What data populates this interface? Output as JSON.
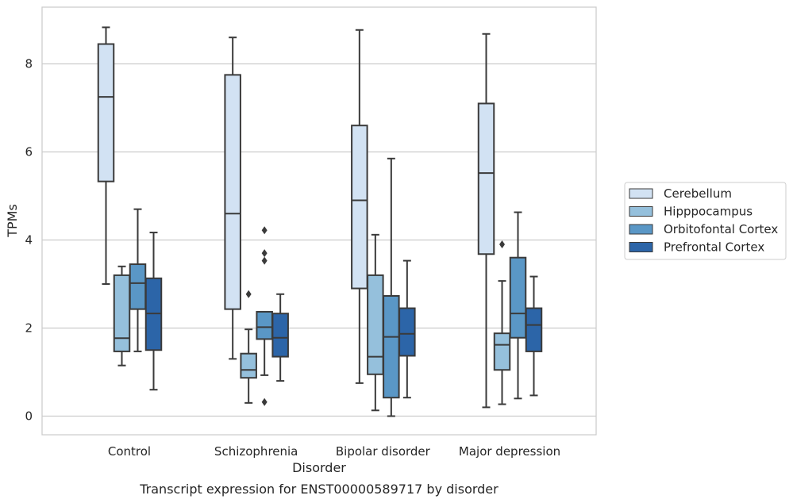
{
  "chart_data": {
    "type": "box",
    "title": "Transcript expression for ENST00000589717 by disorder",
    "xlabel": "Disorder",
    "ylabel": "TPMs",
    "ylim": [
      -0.4,
      9.3
    ],
    "yticks": [
      0,
      2,
      4,
      6,
      8
    ],
    "grid": true,
    "legend_position": "right",
    "categories": [
      "Control",
      "Schizophrenia",
      "Bipolar disorder",
      "Major depression"
    ],
    "series": [
      {
        "name": "Cerebellum",
        "color": "#d2e2f3",
        "boxes": [
          {
            "whislo": 3.0,
            "q1": 5.33,
            "med": 7.25,
            "q3": 8.45,
            "whishi": 8.83,
            "fliers": []
          },
          {
            "whislo": 1.3,
            "q1": 2.43,
            "med": 4.6,
            "q3": 7.75,
            "whishi": 8.6,
            "fliers": []
          },
          {
            "whislo": 0.75,
            "q1": 2.9,
            "med": 4.9,
            "q3": 6.6,
            "whishi": 8.77,
            "fliers": []
          },
          {
            "whislo": 0.2,
            "q1": 3.68,
            "med": 5.52,
            "q3": 7.1,
            "whishi": 8.68,
            "fliers": []
          }
        ]
      },
      {
        "name": "Hipppocampus",
        "color": "#95c0dc",
        "boxes": [
          {
            "whislo": 1.15,
            "q1": 1.47,
            "med": 1.77,
            "q3": 3.2,
            "whishi": 3.4,
            "fliers": []
          },
          {
            "whislo": 0.3,
            "q1": 0.87,
            "med": 1.05,
            "q3": 1.42,
            "whishi": 1.97,
            "fliers": [
              2.77
            ]
          },
          {
            "whislo": 0.13,
            "q1": 0.95,
            "med": 1.35,
            "q3": 3.2,
            "whishi": 4.12,
            "fliers": []
          },
          {
            "whislo": 0.27,
            "q1": 1.05,
            "med": 1.62,
            "q3": 1.88,
            "whishi": 3.07,
            "fliers": [
              3.9
            ]
          }
        ]
      },
      {
        "name": "Orbitofontal Cortex",
        "color": "#5a97c6",
        "boxes": [
          {
            "whislo": 1.47,
            "q1": 2.43,
            "med": 3.02,
            "q3": 3.45,
            "whishi": 4.7,
            "fliers": []
          },
          {
            "whislo": 0.93,
            "q1": 1.75,
            "med": 2.02,
            "q3": 2.37,
            "whishi": 2.37,
            "fliers": [
              0.32,
              3.53,
              3.7,
              4.22
            ]
          },
          {
            "whislo": 0.0,
            "q1": 0.42,
            "med": 1.8,
            "q3": 2.73,
            "whishi": 5.85,
            "fliers": []
          },
          {
            "whislo": 0.4,
            "q1": 1.78,
            "med": 2.33,
            "q3": 3.6,
            "whishi": 4.63,
            "fliers": []
          }
        ]
      },
      {
        "name": "Prefrontal Cortex",
        "color": "#2c65a8",
        "boxes": [
          {
            "whislo": 0.6,
            "q1": 1.5,
            "med": 2.33,
            "q3": 3.13,
            "whishi": 4.17,
            "fliers": []
          },
          {
            "whislo": 0.8,
            "q1": 1.35,
            "med": 1.78,
            "q3": 2.33,
            "whishi": 2.77,
            "fliers": []
          },
          {
            "whislo": 0.42,
            "q1": 1.37,
            "med": 1.87,
            "q3": 2.45,
            "whishi": 3.53,
            "fliers": []
          },
          {
            "whislo": 0.47,
            "q1": 1.47,
            "med": 2.07,
            "q3": 2.45,
            "whishi": 3.17,
            "fliers": []
          }
        ]
      }
    ]
  }
}
